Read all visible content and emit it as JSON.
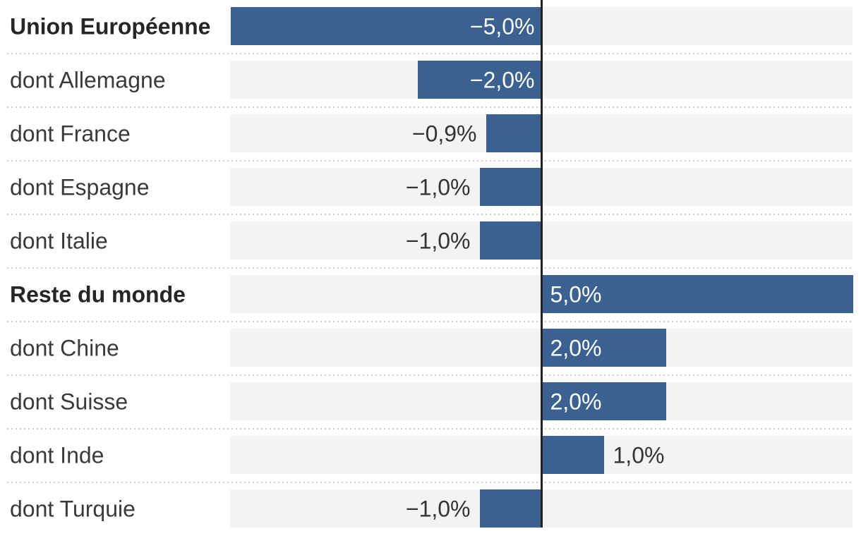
{
  "chart_data": {
    "type": "bar",
    "orientation": "horizontal",
    "title": "",
    "xlabel": "",
    "ylabel": "",
    "xlim": [
      -5,
      5
    ],
    "grid": false,
    "legend": "none",
    "categories": [
      "Union Européenne",
      "dont Allemagne",
      "dont France",
      "dont Espagne",
      "dont Italie",
      "Reste du monde",
      "dont Chine",
      "dont Suisse",
      "dont Inde",
      "dont Turquie"
    ],
    "values": [
      -5.0,
      -2.0,
      -0.9,
      -1.0,
      -1.0,
      5.0,
      2.0,
      2.0,
      1.0,
      -1.0
    ],
    "value_labels": [
      "−5,0%",
      "−2,0%",
      "−0,9%",
      "−1,0%",
      "−1,0%",
      "5,0%",
      "2,0%",
      "2,0%",
      "1,0%",
      "−1,0%"
    ],
    "bold_rows": [
      0,
      5
    ],
    "label_inside": [
      true,
      true,
      false,
      false,
      false,
      true,
      true,
      true,
      false,
      false
    ],
    "colors": {
      "bar": "#3a618f",
      "track": "#f3f3f3",
      "separator": "#cfcfcf",
      "baseline": "#222222",
      "label": "#3a3a3a",
      "label_bold": "#262626",
      "value_inside": "#ffffff",
      "value_outside": "#333333"
    }
  }
}
